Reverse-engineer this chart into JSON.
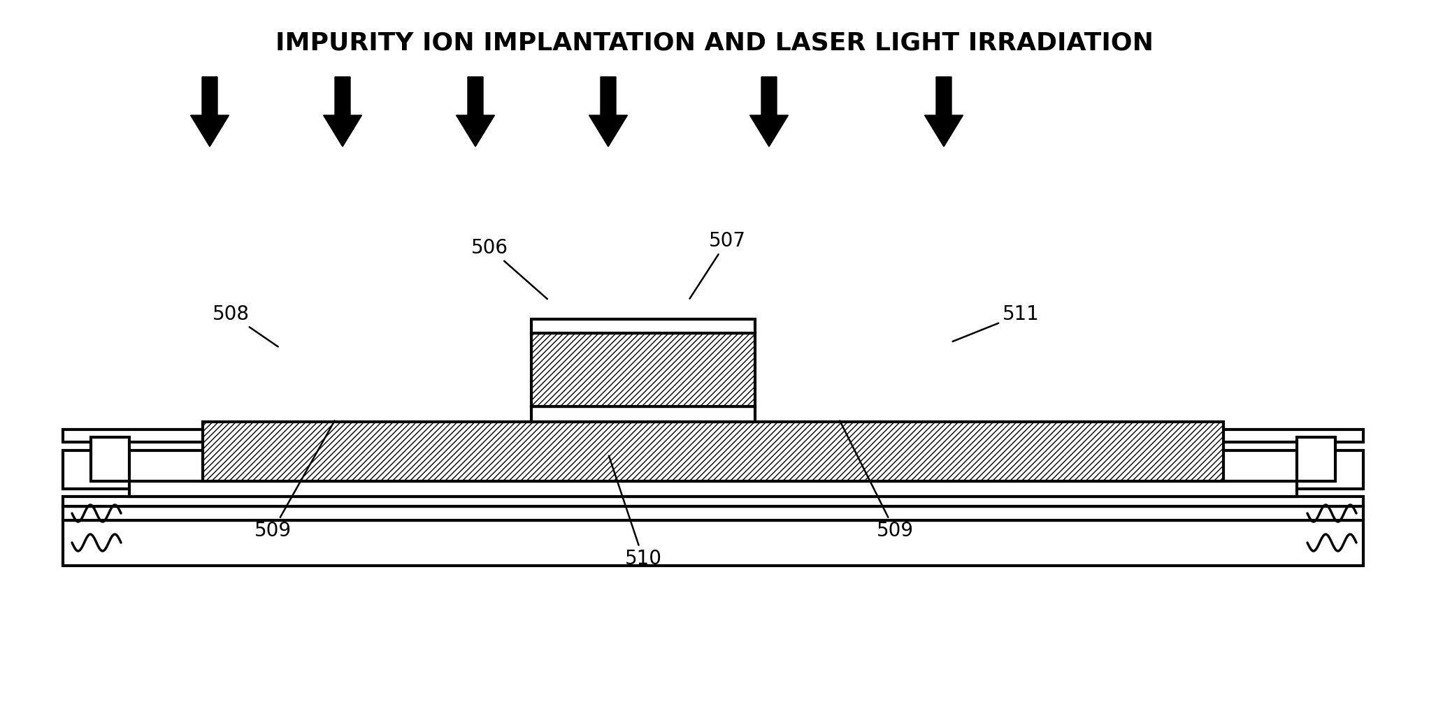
{
  "title": "IMPURITY ION IMPLANTATION AND LASER LIGHT IRRADIATION",
  "title_fontsize": 26,
  "title_fontweight": "bold",
  "bg_color": "#ffffff",
  "fig_width": 20.44,
  "fig_height": 10.41,
  "label_fontsize": 20
}
